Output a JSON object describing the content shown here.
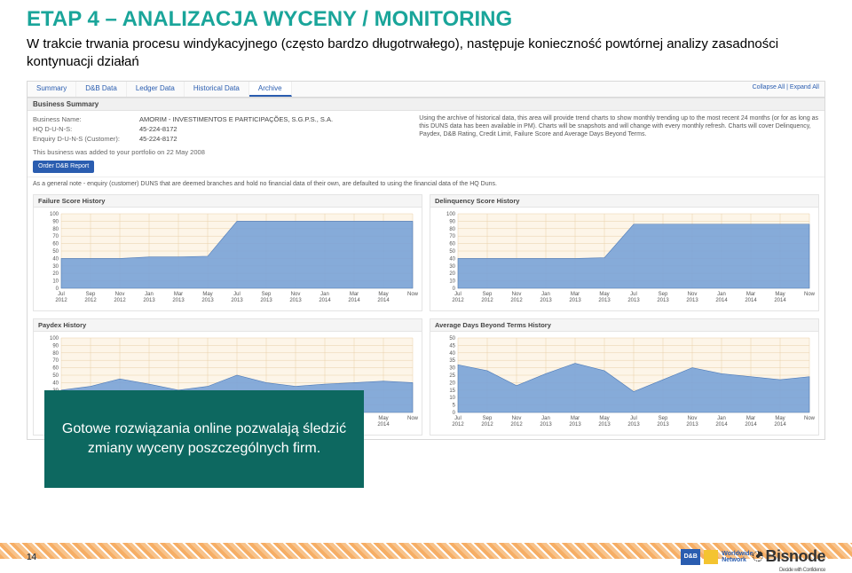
{
  "title_color": "#1aa59a",
  "title": "ETAP 4 – ANALIZACJA WYCENY / MONITORING",
  "subtitle": "W trakcie trwania procesu windykacyjnego (często bardzo długotrwałego), następuje konieczność powtórnej analizy zasadności kontynuacji działań",
  "tabs": {
    "items": [
      "Summary",
      "D&B Data",
      "Ledger Data",
      "Historical Data",
      "Archive"
    ],
    "active_index": 4,
    "right": "Collapse All | Expand All"
  },
  "business_summary": {
    "header": "Business Summary",
    "rows": [
      {
        "label": "Business Name:",
        "value": "AMORIM - INVESTIMENTOS E PARTICIPAÇÕES, S.G.P.S., S.A."
      },
      {
        "label": "HQ D-U-N-S:",
        "value": "45-224-8172"
      },
      {
        "label": "Enquiry D-U-N-S (Customer):",
        "value": "45-224-8172"
      }
    ],
    "added_note": "This business was added to your portfolio on 22 May 2008",
    "button": "Order D&B Report",
    "archive_desc": "Using the archive of historical data, this area will provide trend charts to show monthly trending up to the most recent 24 months (or for as long as this DUNS data has been available in PM). Charts will be snapshots and will change with every monthly refresh. Charts will cover Delinquency, Paydex, D&B Rating, Credit Limit, Failure Score and Average Days Beyond Terms.",
    "general_note": "As a general note - enquiry (customer) DUNS that are deemed branches and hold no financial data of their own, are defaulted to using the financial data of the HQ Duns."
  },
  "charts": {
    "xlabels": [
      "Jul 2012",
      "Sep 2012",
      "Nov 2012",
      "Jan 2013",
      "Mar 2013",
      "May 2013",
      "Jul 2013",
      "Sep 2013",
      "Nov 2013",
      "Jan 2014",
      "Mar 2014",
      "May 2014",
      "Now"
    ],
    "chart_bg": "#fdf5e8",
    "grid_color": "#e8cfa8",
    "area_color": "#7aa3d8",
    "failure": {
      "title": "Failure Score History",
      "yticks": [
        0,
        10,
        20,
        30,
        40,
        50,
        60,
        70,
        80,
        90,
        100
      ],
      "values": [
        40,
        40,
        40,
        42,
        42,
        43,
        90,
        90,
        90,
        90,
        90,
        90,
        90
      ]
    },
    "delinquency": {
      "title": "Delinquency Score History",
      "yticks": [
        0,
        10,
        20,
        30,
        40,
        50,
        60,
        70,
        80,
        90,
        100
      ],
      "values": [
        40,
        40,
        40,
        40,
        40,
        41,
        86,
        86,
        86,
        86,
        86,
        86,
        86
      ]
    },
    "paydex": {
      "title": "Paydex History",
      "yticks": [
        0,
        10,
        20,
        30,
        40,
        50,
        60,
        70,
        80,
        90,
        100
      ],
      "values": [
        30,
        35,
        45,
        38,
        30,
        35,
        50,
        40,
        35,
        38,
        40,
        42,
        40
      ]
    },
    "avgdays": {
      "title": "Average Days Beyond Terms History",
      "yticks": [
        0,
        5,
        10,
        15,
        20,
        25,
        30,
        35,
        40,
        45,
        50
      ],
      "values": [
        32,
        28,
        18,
        26,
        33,
        28,
        14,
        22,
        30,
        26,
        24,
        22,
        24
      ]
    }
  },
  "callout": "Gotowe rozwiązania online pozwalają śledzić zmiany wyceny poszczególnych firm.",
  "page_number": "14",
  "logos": {
    "dnb": "D&B",
    "dnb_side": "Worldwide\nNetwork",
    "bisnode": "Bisnode",
    "bisnode_tag": "Decide with Confidence"
  }
}
